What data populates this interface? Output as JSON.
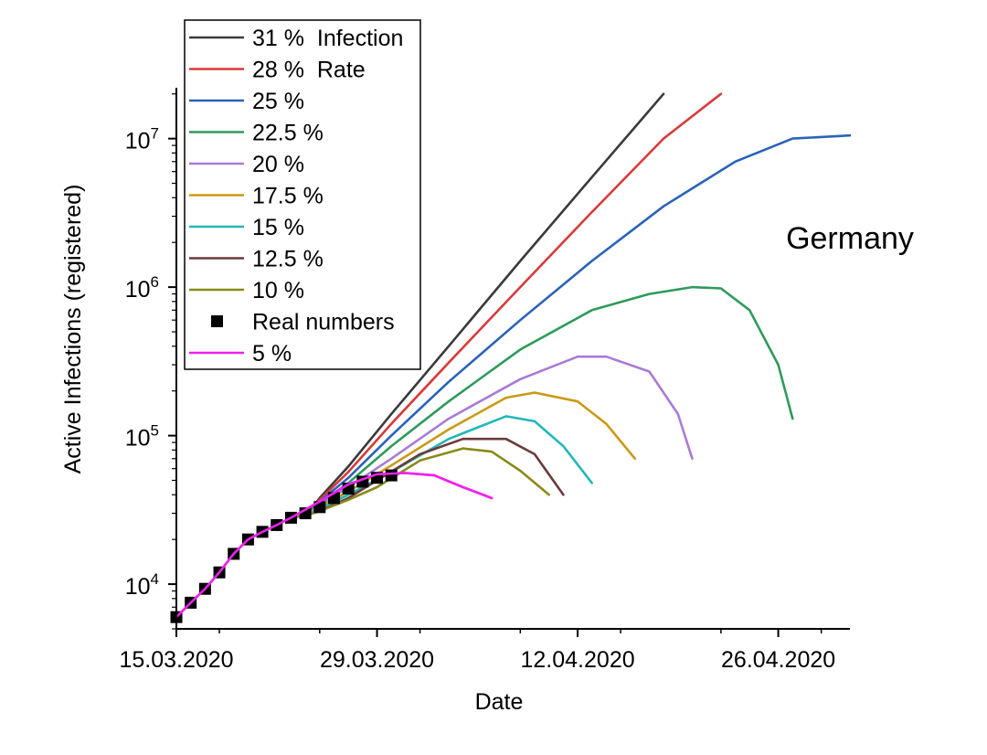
{
  "chart_data": {
    "type": "line",
    "title": "",
    "annotation": "Germany",
    "xlabel": "Date",
    "ylabel": "Active Infections (registered)",
    "x_scale": "date",
    "xlim": [
      "2020-03-15",
      "2020-05-01"
    ],
    "x_ticks": [
      {
        "date": "2020-03-15",
        "label": "15.03.2020"
      },
      {
        "date": "2020-03-29",
        "label": "29.03.2020"
      },
      {
        "date": "2020-04-12",
        "label": "12.04.2020"
      },
      {
        "date": "2020-04-26",
        "label": "26.04.2020"
      }
    ],
    "y_scale": "log",
    "ylim": [
      5000,
      22000000
    ],
    "y_ticks": [
      {
        "value": 10000,
        "base": "10",
        "exp": "4"
      },
      {
        "value": 100000,
        "base": "10",
        "exp": "5"
      },
      {
        "value": 1000000,
        "base": "10",
        "exp": "6"
      },
      {
        "value": 10000000,
        "base": "10",
        "exp": "7"
      }
    ],
    "legend_position": "top-left",
    "grid": false,
    "series": [
      {
        "name": "31 %  Infection",
        "kind": "line",
        "color": "#3a3a3a",
        "points": [
          [
            "2020-03-23",
            28000
          ],
          [
            "2020-03-24",
            29000
          ],
          [
            "2020-03-25",
            38000
          ],
          [
            "2020-03-27",
            62000
          ],
          [
            "2020-03-30",
            140000
          ],
          [
            "2020-04-03",
            400000
          ],
          [
            "2020-04-08",
            1500000
          ],
          [
            "2020-04-13",
            5500000
          ],
          [
            "2020-04-18",
            20000000
          ]
        ]
      },
      {
        "name": "28 %  Rate",
        "kind": "line",
        "color": "#d83a3a",
        "points": [
          [
            "2020-03-23",
            28000
          ],
          [
            "2020-03-24",
            29000
          ],
          [
            "2020-03-25",
            37000
          ],
          [
            "2020-03-27",
            57000
          ],
          [
            "2020-03-30",
            120000
          ],
          [
            "2020-04-03",
            310000
          ],
          [
            "2020-04-08",
            1000000
          ],
          [
            "2020-04-13",
            3200000
          ],
          [
            "2020-04-18",
            10000000
          ],
          [
            "2020-04-22",
            20000000
          ]
        ]
      },
      {
        "name": "25 %",
        "kind": "line",
        "color": "#2a62b8",
        "points": [
          [
            "2020-03-23",
            28000
          ],
          [
            "2020-03-24",
            29000
          ],
          [
            "2020-03-25",
            36000
          ],
          [
            "2020-03-27",
            52000
          ],
          [
            "2020-03-30",
            100000
          ],
          [
            "2020-04-03",
            230000
          ],
          [
            "2020-04-08",
            600000
          ],
          [
            "2020-04-13",
            1500000
          ],
          [
            "2020-04-18",
            3500000
          ],
          [
            "2020-04-23",
            7000000
          ],
          [
            "2020-04-27",
            10000000
          ],
          [
            "2020-05-01",
            10500000
          ]
        ]
      },
      {
        "name": "22.5 %",
        "kind": "line",
        "color": "#2e9a5b",
        "points": [
          [
            "2020-03-23",
            28000
          ],
          [
            "2020-03-24",
            29000
          ],
          [
            "2020-03-25",
            35000
          ],
          [
            "2020-03-27",
            48000
          ],
          [
            "2020-03-30",
            85000
          ],
          [
            "2020-04-03",
            170000
          ],
          [
            "2020-04-08",
            380000
          ],
          [
            "2020-04-13",
            700000
          ],
          [
            "2020-04-17",
            900000
          ],
          [
            "2020-04-20",
            1000000
          ],
          [
            "2020-04-22",
            980000
          ],
          [
            "2020-04-24",
            700000
          ],
          [
            "2020-04-26",
            300000
          ],
          [
            "2020-04-27",
            130000
          ]
        ]
      },
      {
        "name": "20 %",
        "kind": "line",
        "color": "#a97bd6",
        "points": [
          [
            "2020-03-23",
            28000
          ],
          [
            "2020-03-24",
            29000
          ],
          [
            "2020-03-25",
            34000
          ],
          [
            "2020-03-27",
            45000
          ],
          [
            "2020-03-30",
            70000
          ],
          [
            "2020-04-03",
            130000
          ],
          [
            "2020-04-08",
            240000
          ],
          [
            "2020-04-12",
            340000
          ],
          [
            "2020-04-14",
            340000
          ],
          [
            "2020-04-17",
            270000
          ],
          [
            "2020-04-19",
            140000
          ],
          [
            "2020-04-20",
            70000
          ]
        ]
      },
      {
        "name": "17.5 %",
        "kind": "line",
        "color": "#c99a14",
        "points": [
          [
            "2020-03-23",
            28000
          ],
          [
            "2020-03-24",
            29000
          ],
          [
            "2020-03-25",
            33000
          ],
          [
            "2020-03-27",
            42000
          ],
          [
            "2020-03-30",
            63000
          ],
          [
            "2020-04-03",
            110000
          ],
          [
            "2020-04-07",
            180000
          ],
          [
            "2020-04-09",
            195000
          ],
          [
            "2020-04-12",
            170000
          ],
          [
            "2020-04-14",
            120000
          ],
          [
            "2020-04-16",
            70000
          ]
        ]
      },
      {
        "name": "15 %",
        "kind": "line",
        "color": "#22b8b8",
        "points": [
          [
            "2020-03-23",
            28000
          ],
          [
            "2020-03-24",
            29000
          ],
          [
            "2020-03-25",
            32000
          ],
          [
            "2020-03-27",
            40000
          ],
          [
            "2020-03-30",
            57000
          ],
          [
            "2020-04-03",
            95000
          ],
          [
            "2020-04-07",
            135000
          ],
          [
            "2020-04-09",
            125000
          ],
          [
            "2020-04-11",
            85000
          ],
          [
            "2020-04-13",
            48000
          ]
        ]
      },
      {
        "name": "12.5 %",
        "kind": "line",
        "color": "#6b3a3a",
        "points": [
          [
            "2020-03-23",
            28000
          ],
          [
            "2020-03-24",
            29000
          ],
          [
            "2020-03-25",
            31000
          ],
          [
            "2020-03-27",
            38000
          ],
          [
            "2020-03-29",
            50000
          ],
          [
            "2020-04-01",
            75000
          ],
          [
            "2020-04-04",
            95000
          ],
          [
            "2020-04-07",
            95000
          ],
          [
            "2020-04-09",
            75000
          ],
          [
            "2020-04-11",
            40000
          ]
        ]
      },
      {
        "name": "10 %",
        "kind": "line",
        "color": "#8a8a1a",
        "points": [
          [
            "2020-03-23",
            28000
          ],
          [
            "2020-03-24",
            29000
          ],
          [
            "2020-03-25",
            31000
          ],
          [
            "2020-03-27",
            37000
          ],
          [
            "2020-03-29",
            45000
          ],
          [
            "2020-04-01",
            68000
          ],
          [
            "2020-04-04",
            82000
          ],
          [
            "2020-04-06",
            78000
          ],
          [
            "2020-04-08",
            58000
          ],
          [
            "2020-04-10",
            40000
          ]
        ]
      },
      {
        "name": "Real numbers",
        "kind": "marker",
        "color": "#000000",
        "points": [
          [
            "2020-03-15",
            6000
          ],
          [
            "2020-03-16",
            7500
          ],
          [
            "2020-03-17",
            9300
          ],
          [
            "2020-03-18",
            12000
          ],
          [
            "2020-03-19",
            16000
          ],
          [
            "2020-03-20",
            20000
          ],
          [
            "2020-03-21",
            22500
          ],
          [
            "2020-03-22",
            25000
          ],
          [
            "2020-03-23",
            28000
          ],
          [
            "2020-03-24",
            30000
          ],
          [
            "2020-03-25",
            33000
          ],
          [
            "2020-03-26",
            38000
          ],
          [
            "2020-03-27",
            44000
          ],
          [
            "2020-03-28",
            49000
          ],
          [
            "2020-03-29",
            52000
          ],
          [
            "2020-03-30",
            54000
          ]
        ]
      },
      {
        "name": "5 %",
        "kind": "line",
        "color": "#ee22ee",
        "points": [
          [
            "2020-03-15",
            6000
          ],
          [
            "2020-03-16",
            7500
          ],
          [
            "2020-03-17",
            9300
          ],
          [
            "2020-03-18",
            12000
          ],
          [
            "2020-03-19",
            16000
          ],
          [
            "2020-03-20",
            20000
          ],
          [
            "2020-03-21",
            22500
          ],
          [
            "2020-03-22",
            25000
          ],
          [
            "2020-03-23",
            28000
          ],
          [
            "2020-03-25",
            36000
          ],
          [
            "2020-03-27",
            47000
          ],
          [
            "2020-03-29",
            55000
          ],
          [
            "2020-03-31",
            56000
          ],
          [
            "2020-04-02",
            54000
          ],
          [
            "2020-04-04",
            45000
          ],
          [
            "2020-04-06",
            38000
          ]
        ]
      }
    ]
  }
}
